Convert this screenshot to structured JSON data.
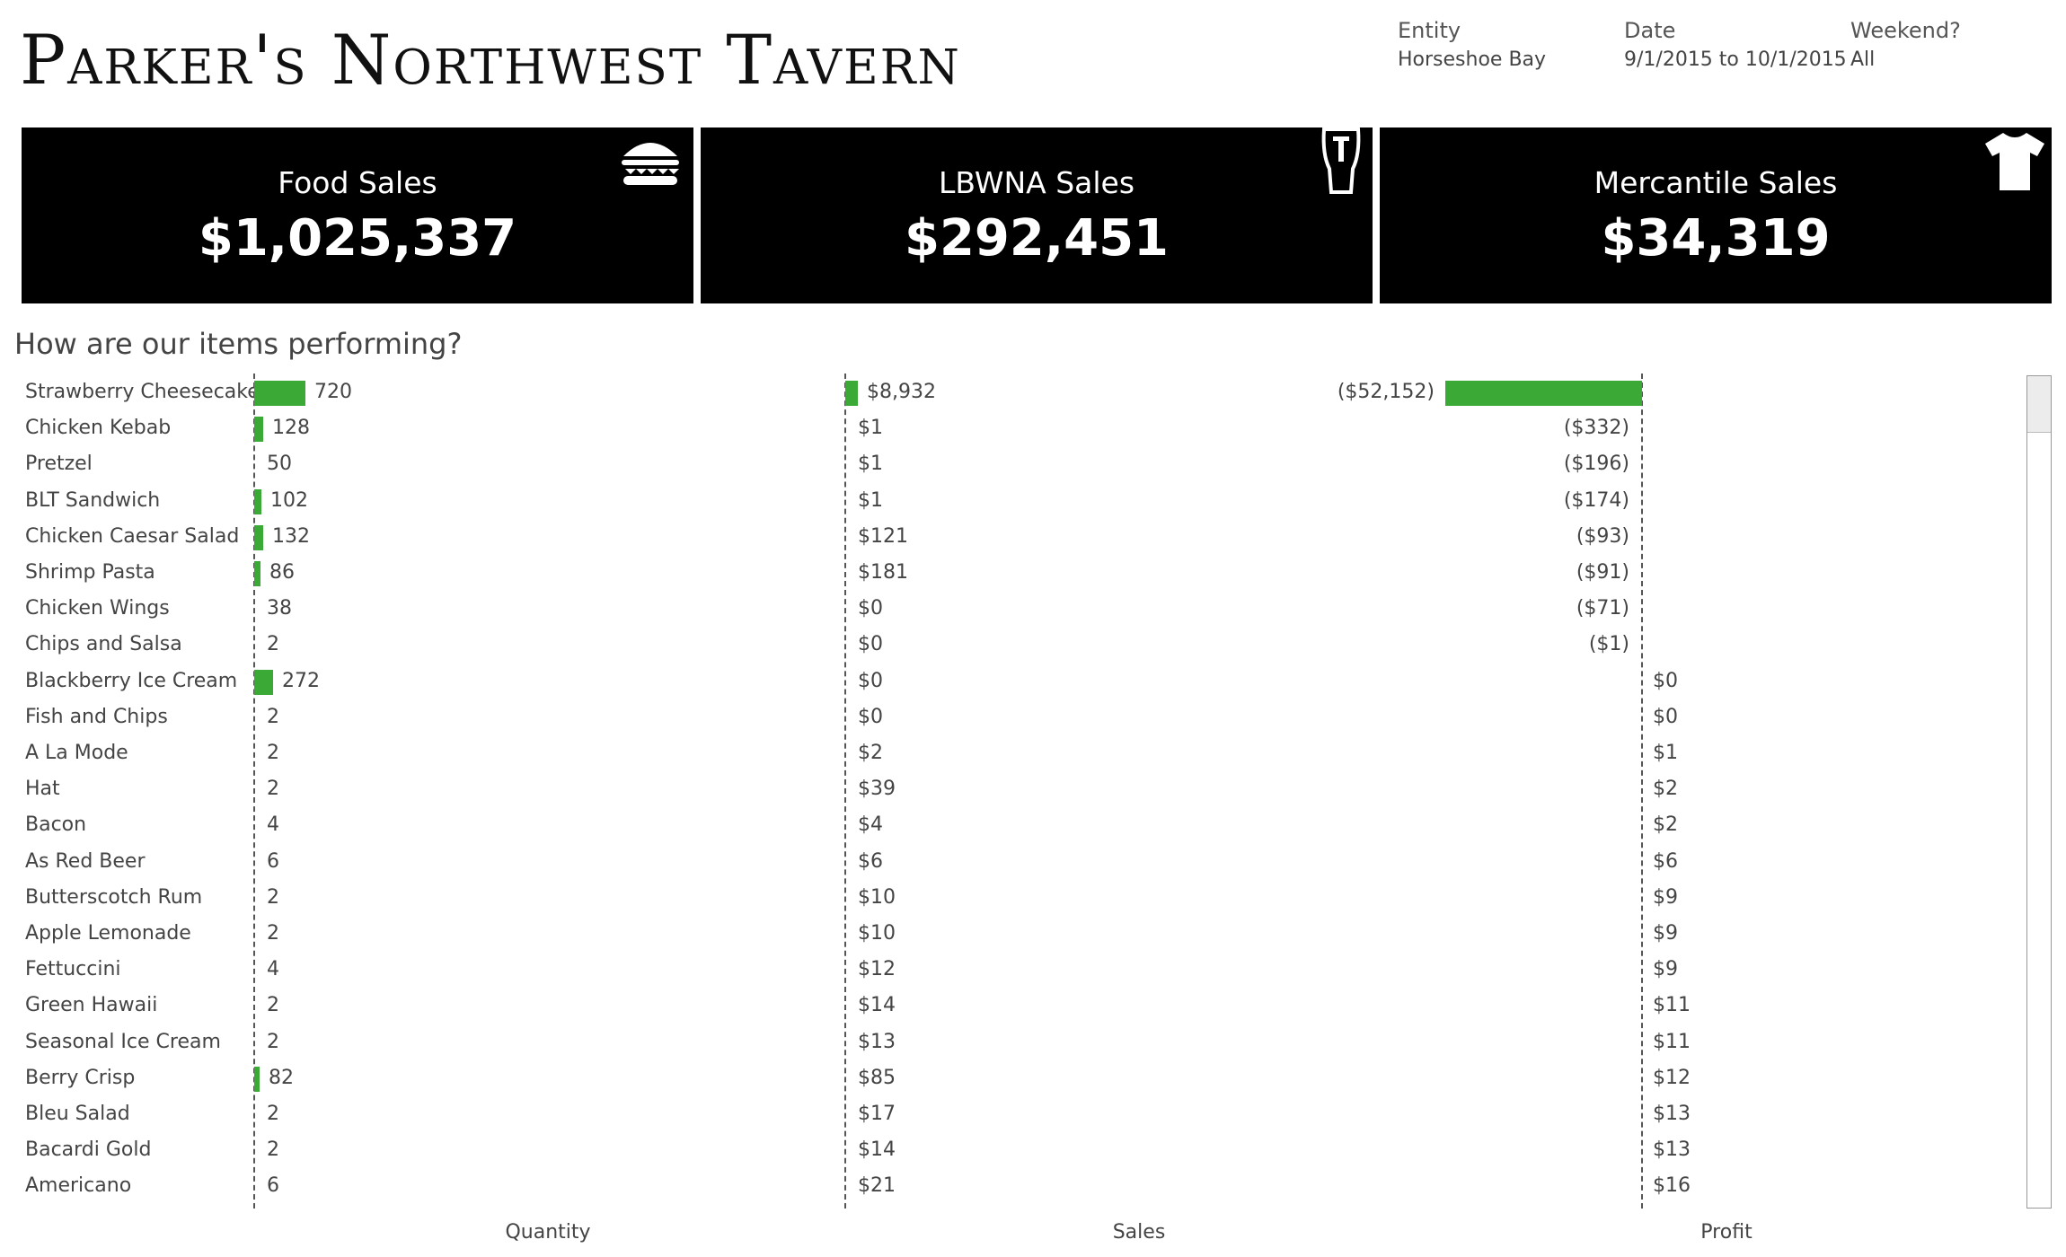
{
  "header": {
    "title": "Parker's Northwest Tavern",
    "filters": [
      {
        "label": "Entity",
        "value": "Horseshoe Bay"
      },
      {
        "label": "Date",
        "value": "9/1/2015 to 10/1/2015"
      },
      {
        "label": "Weekend?",
        "value": "All"
      }
    ]
  },
  "kpis": [
    {
      "title": "Food Sales",
      "value": "$1,025,337",
      "icon": "burger-icon"
    },
    {
      "title": "LBWNA Sales",
      "value": "$292,451",
      "icon": "beer-glass-icon"
    },
    {
      "title": "Mercantile Sales",
      "value": "$34,319",
      "icon": "tshirt-icon"
    }
  ],
  "section_title": "How are our items performing?",
  "axis_labels": {
    "quantity": "Quantity",
    "sales": "Sales",
    "profit": "Profit"
  },
  "colors": {
    "bar": "#3aa935",
    "kpi_bg": "#000000"
  },
  "chart_data": {
    "type": "bar",
    "categories": [
      "Strawberry Cheesecake",
      "Chicken Kebab",
      "Pretzel",
      "BLT Sandwich",
      "Chicken Caesar Salad",
      "Shrimp Pasta",
      "Chicken Wings",
      "Chips and Salsa",
      "Blackberry Ice Cream",
      "Fish and Chips",
      "A La Mode",
      "Hat",
      "Bacon",
      "As Red Beer",
      "Butterscotch Rum",
      "Apple Lemonade",
      "Fettuccini",
      "Green Hawaii",
      "Seasonal Ice Cream",
      "Berry Crisp",
      "Bleu Salad",
      "Bacardi Gold",
      "Americano"
    ],
    "series": [
      {
        "name": "Quantity",
        "values": [
          720,
          128,
          50,
          102,
          132,
          86,
          38,
          2,
          272,
          2,
          2,
          2,
          4,
          6,
          2,
          2,
          4,
          2,
          2,
          82,
          2,
          2,
          6
        ],
        "labels": [
          "720",
          "128",
          "50",
          "102",
          "132",
          "86",
          "38",
          "2",
          "272",
          "2",
          "2",
          "2",
          "4",
          "6",
          "2",
          "2",
          "4",
          "2",
          "2",
          "82",
          "2",
          "2",
          "6"
        ]
      },
      {
        "name": "Sales",
        "values": [
          8932,
          1,
          1,
          1,
          121,
          181,
          0,
          0,
          0,
          0,
          2,
          39,
          4,
          6,
          10,
          10,
          12,
          14,
          13,
          85,
          17,
          14,
          21
        ],
        "labels": [
          "$8,932",
          "$1",
          "$1",
          "$1",
          "$121",
          "$181",
          "$0",
          "$0",
          "$0",
          "$0",
          "$2",
          "$39",
          "$4",
          "$6",
          "$10",
          "$10",
          "$12",
          "$14",
          "$13",
          "$85",
          "$17",
          "$14",
          "$21"
        ]
      },
      {
        "name": "Profit",
        "values": [
          -52152,
          -332,
          -196,
          -174,
          -93,
          -91,
          -71,
          -1,
          0,
          0,
          1,
          2,
          2,
          6,
          9,
          9,
          9,
          11,
          11,
          12,
          13,
          13,
          16
        ],
        "labels": [
          "($52,152)",
          "($332)",
          "($196)",
          "($174)",
          "($93)",
          "($91)",
          "($71)",
          "($1)",
          "$0",
          "$0",
          "$1",
          "$2",
          "$2",
          "$6",
          "$9",
          "$9",
          "$9",
          "$11",
          "$11",
          "$12",
          "$13",
          "$13",
          "$16"
        ]
      }
    ]
  }
}
